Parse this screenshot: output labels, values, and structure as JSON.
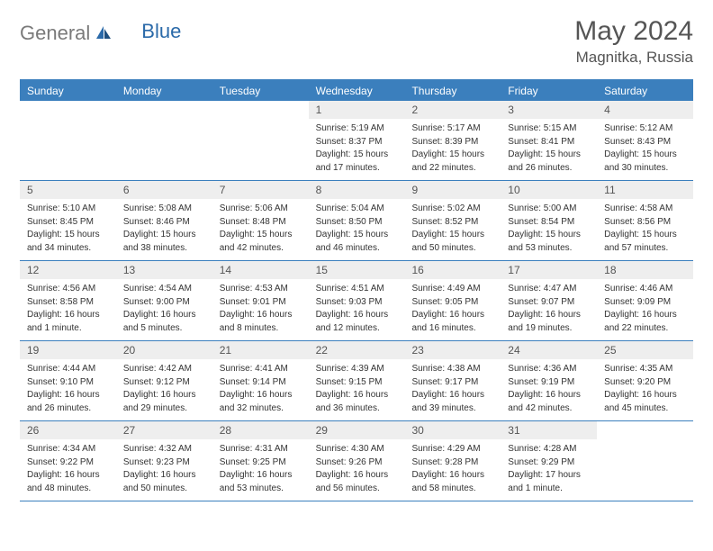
{
  "logo": {
    "text1": "General",
    "text2": "Blue"
  },
  "title": "May 2024",
  "location": "Magnitka, Russia",
  "colors": {
    "header_bg": "#3b7fbd",
    "header_text": "#ffffff",
    "daynum_bg": "#eeeeee",
    "daynum_text": "#555555",
    "body_text": "#333333",
    "logo_gray": "#7a7a7a",
    "logo_blue": "#2b6aa9"
  },
  "day_headers": [
    "Sunday",
    "Monday",
    "Tuesday",
    "Wednesday",
    "Thursday",
    "Friday",
    "Saturday"
  ],
  "weeks": [
    [
      {
        "blank": true
      },
      {
        "blank": true
      },
      {
        "blank": true
      },
      {
        "num": "1",
        "sunrise": "Sunrise: 5:19 AM",
        "sunset": "Sunset: 8:37 PM",
        "daylight1": "Daylight: 15 hours",
        "daylight2": "and 17 minutes."
      },
      {
        "num": "2",
        "sunrise": "Sunrise: 5:17 AM",
        "sunset": "Sunset: 8:39 PM",
        "daylight1": "Daylight: 15 hours",
        "daylight2": "and 22 minutes."
      },
      {
        "num": "3",
        "sunrise": "Sunrise: 5:15 AM",
        "sunset": "Sunset: 8:41 PM",
        "daylight1": "Daylight: 15 hours",
        "daylight2": "and 26 minutes."
      },
      {
        "num": "4",
        "sunrise": "Sunrise: 5:12 AM",
        "sunset": "Sunset: 8:43 PM",
        "daylight1": "Daylight: 15 hours",
        "daylight2": "and 30 minutes."
      }
    ],
    [
      {
        "num": "5",
        "sunrise": "Sunrise: 5:10 AM",
        "sunset": "Sunset: 8:45 PM",
        "daylight1": "Daylight: 15 hours",
        "daylight2": "and 34 minutes."
      },
      {
        "num": "6",
        "sunrise": "Sunrise: 5:08 AM",
        "sunset": "Sunset: 8:46 PM",
        "daylight1": "Daylight: 15 hours",
        "daylight2": "and 38 minutes."
      },
      {
        "num": "7",
        "sunrise": "Sunrise: 5:06 AM",
        "sunset": "Sunset: 8:48 PM",
        "daylight1": "Daylight: 15 hours",
        "daylight2": "and 42 minutes."
      },
      {
        "num": "8",
        "sunrise": "Sunrise: 5:04 AM",
        "sunset": "Sunset: 8:50 PM",
        "daylight1": "Daylight: 15 hours",
        "daylight2": "and 46 minutes."
      },
      {
        "num": "9",
        "sunrise": "Sunrise: 5:02 AM",
        "sunset": "Sunset: 8:52 PM",
        "daylight1": "Daylight: 15 hours",
        "daylight2": "and 50 minutes."
      },
      {
        "num": "10",
        "sunrise": "Sunrise: 5:00 AM",
        "sunset": "Sunset: 8:54 PM",
        "daylight1": "Daylight: 15 hours",
        "daylight2": "and 53 minutes."
      },
      {
        "num": "11",
        "sunrise": "Sunrise: 4:58 AM",
        "sunset": "Sunset: 8:56 PM",
        "daylight1": "Daylight: 15 hours",
        "daylight2": "and 57 minutes."
      }
    ],
    [
      {
        "num": "12",
        "sunrise": "Sunrise: 4:56 AM",
        "sunset": "Sunset: 8:58 PM",
        "daylight1": "Daylight: 16 hours",
        "daylight2": "and 1 minute."
      },
      {
        "num": "13",
        "sunrise": "Sunrise: 4:54 AM",
        "sunset": "Sunset: 9:00 PM",
        "daylight1": "Daylight: 16 hours",
        "daylight2": "and 5 minutes."
      },
      {
        "num": "14",
        "sunrise": "Sunrise: 4:53 AM",
        "sunset": "Sunset: 9:01 PM",
        "daylight1": "Daylight: 16 hours",
        "daylight2": "and 8 minutes."
      },
      {
        "num": "15",
        "sunrise": "Sunrise: 4:51 AM",
        "sunset": "Sunset: 9:03 PM",
        "daylight1": "Daylight: 16 hours",
        "daylight2": "and 12 minutes."
      },
      {
        "num": "16",
        "sunrise": "Sunrise: 4:49 AM",
        "sunset": "Sunset: 9:05 PM",
        "daylight1": "Daylight: 16 hours",
        "daylight2": "and 16 minutes."
      },
      {
        "num": "17",
        "sunrise": "Sunrise: 4:47 AM",
        "sunset": "Sunset: 9:07 PM",
        "daylight1": "Daylight: 16 hours",
        "daylight2": "and 19 minutes."
      },
      {
        "num": "18",
        "sunrise": "Sunrise: 4:46 AM",
        "sunset": "Sunset: 9:09 PM",
        "daylight1": "Daylight: 16 hours",
        "daylight2": "and 22 minutes."
      }
    ],
    [
      {
        "num": "19",
        "sunrise": "Sunrise: 4:44 AM",
        "sunset": "Sunset: 9:10 PM",
        "daylight1": "Daylight: 16 hours",
        "daylight2": "and 26 minutes."
      },
      {
        "num": "20",
        "sunrise": "Sunrise: 4:42 AM",
        "sunset": "Sunset: 9:12 PM",
        "daylight1": "Daylight: 16 hours",
        "daylight2": "and 29 minutes."
      },
      {
        "num": "21",
        "sunrise": "Sunrise: 4:41 AM",
        "sunset": "Sunset: 9:14 PM",
        "daylight1": "Daylight: 16 hours",
        "daylight2": "and 32 minutes."
      },
      {
        "num": "22",
        "sunrise": "Sunrise: 4:39 AM",
        "sunset": "Sunset: 9:15 PM",
        "daylight1": "Daylight: 16 hours",
        "daylight2": "and 36 minutes."
      },
      {
        "num": "23",
        "sunrise": "Sunrise: 4:38 AM",
        "sunset": "Sunset: 9:17 PM",
        "daylight1": "Daylight: 16 hours",
        "daylight2": "and 39 minutes."
      },
      {
        "num": "24",
        "sunrise": "Sunrise: 4:36 AM",
        "sunset": "Sunset: 9:19 PM",
        "daylight1": "Daylight: 16 hours",
        "daylight2": "and 42 minutes."
      },
      {
        "num": "25",
        "sunrise": "Sunrise: 4:35 AM",
        "sunset": "Sunset: 9:20 PM",
        "daylight1": "Daylight: 16 hours",
        "daylight2": "and 45 minutes."
      }
    ],
    [
      {
        "num": "26",
        "sunrise": "Sunrise: 4:34 AM",
        "sunset": "Sunset: 9:22 PM",
        "daylight1": "Daylight: 16 hours",
        "daylight2": "and 48 minutes."
      },
      {
        "num": "27",
        "sunrise": "Sunrise: 4:32 AM",
        "sunset": "Sunset: 9:23 PM",
        "daylight1": "Daylight: 16 hours",
        "daylight2": "and 50 minutes."
      },
      {
        "num": "28",
        "sunrise": "Sunrise: 4:31 AM",
        "sunset": "Sunset: 9:25 PM",
        "daylight1": "Daylight: 16 hours",
        "daylight2": "and 53 minutes."
      },
      {
        "num": "29",
        "sunrise": "Sunrise: 4:30 AM",
        "sunset": "Sunset: 9:26 PM",
        "daylight1": "Daylight: 16 hours",
        "daylight2": "and 56 minutes."
      },
      {
        "num": "30",
        "sunrise": "Sunrise: 4:29 AM",
        "sunset": "Sunset: 9:28 PM",
        "daylight1": "Daylight: 16 hours",
        "daylight2": "and 58 minutes."
      },
      {
        "num": "31",
        "sunrise": "Sunrise: 4:28 AM",
        "sunset": "Sunset: 9:29 PM",
        "daylight1": "Daylight: 17 hours",
        "daylight2": "and 1 minute."
      },
      {
        "blank": true
      }
    ]
  ]
}
